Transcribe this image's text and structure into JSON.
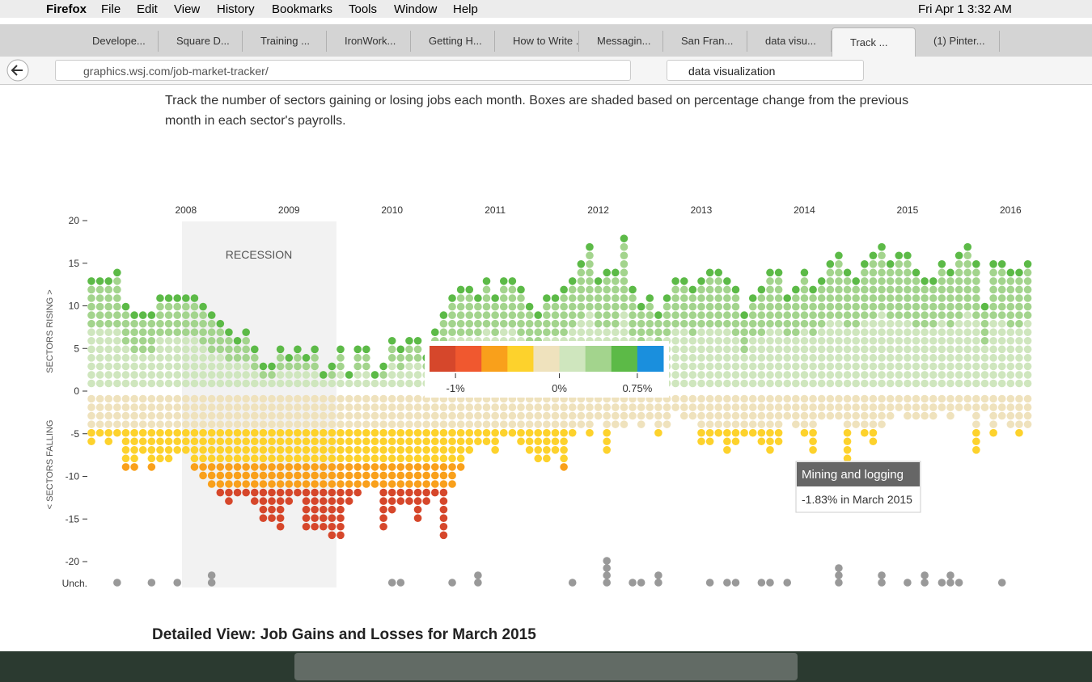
{
  "browser": {
    "menu": [
      "Firefox",
      "File",
      "Edit",
      "View",
      "History",
      "Bookmarks",
      "Tools",
      "Window",
      "Help"
    ],
    "clock": "Fri Apr 1  3:32 AM",
    "tabs": [
      "Develope...",
      "Square D...",
      "Training ...",
      "IronWork...",
      "Getting H...",
      "How to Write ...",
      "Messagin...",
      "San Fran...",
      "data visu...",
      "Track ...",
      "(1) Pinter..."
    ],
    "url": "graphics.wsj.com/job-market-tracker/",
    "search": "data visualization"
  },
  "page": {
    "description": "Track the number of sectors gaining or losing jobs each month. Boxes are shaded based on percentage change from the previous month in each sector's payrolls.",
    "recession_label": "RECESSION",
    "tooltip_title": "Mining and logging",
    "tooltip_detail": "-1.83% in March 2015",
    "section_heading": "Detailed View: Job Gains and Losses for March 2015"
  },
  "chart_data": {
    "type": "dot",
    "y_label_top": "SECTORS RISING >",
    "y_label_bottom": "< SECTORS FALLING",
    "unchanged_label": "Unch.",
    "categories": [
      null,
      null,
      null,
      null,
      null,
      null,
      null,
      null,
      null,
      null,
      null,
      "2008",
      null,
      null,
      null,
      null,
      null,
      null,
      null,
      null,
      null,
      null,
      null,
      "2009",
      null,
      null,
      null,
      null,
      null,
      null,
      null,
      null,
      null,
      null,
      null,
      "2010",
      null,
      null,
      null,
      null,
      null,
      null,
      null,
      null,
      null,
      null,
      null,
      "2011",
      null,
      null,
      null,
      null,
      null,
      null,
      null,
      null,
      null,
      null,
      null,
      "2012",
      null,
      null,
      null,
      null,
      null,
      null,
      null,
      null,
      null,
      null,
      null,
      "2013",
      null,
      null,
      null,
      null,
      null,
      null,
      null,
      null,
      null,
      null,
      null,
      "2014",
      null,
      null,
      null,
      null,
      null,
      null,
      null,
      null,
      null,
      null,
      null,
      "2015",
      null,
      null,
      null,
      null,
      null,
      null,
      null,
      null,
      null,
      null,
      null,
      "2016",
      null,
      null
    ],
    "series": [
      {
        "values": [
          13,
          13,
          13,
          14,
          10,
          9,
          9,
          9,
          11,
          11,
          11,
          11,
          11,
          10,
          9,
          8,
          7,
          6,
          7,
          5,
          3,
          3,
          5,
          4,
          5,
          4,
          5,
          2,
          3,
          5,
          2,
          5,
          5,
          2,
          3,
          6,
          5,
          6,
          6,
          4,
          7,
          9,
          11,
          12,
          12,
          11,
          13,
          11,
          13,
          13,
          12,
          10,
          9,
          11,
          11,
          12,
          13,
          15,
          17,
          13,
          14,
          14,
          18,
          12,
          10,
          11,
          9,
          11,
          13,
          13,
          12,
          13,
          14,
          14,
          13,
          12,
          9,
          11,
          12,
          14,
          14,
          11,
          12,
          14,
          12,
          13,
          15,
          16,
          14,
          13,
          15,
          16,
          17,
          15,
          16,
          16,
          14,
          13,
          13,
          15,
          14,
          16,
          17,
          15,
          10,
          15,
          15,
          14,
          14,
          15
        ]
      },
      {
        "values": [
          -6,
          -5,
          -6,
          -5,
          -9,
          -9,
          -7,
          -9,
          -8,
          -8,
          -7,
          -7,
          -9,
          -10,
          -11,
          -12,
          -13,
          -12,
          -12,
          -13,
          -15,
          -15,
          -16,
          -13,
          -12,
          -16,
          -16,
          -16,
          -17,
          -17,
          -13,
          -12,
          -11,
          -11,
          -16,
          -14,
          -13,
          -13,
          -15,
          -13,
          -12,
          -17,
          -11,
          -9,
          -7,
          -6,
          -6,
          -7,
          -5,
          -5,
          -6,
          -7,
          -8,
          -8,
          -7,
          -9,
          -5,
          -4,
          -5,
          -3,
          -7,
          -4,
          -4,
          -3,
          -4,
          -3,
          -5,
          -4,
          -2,
          -3,
          -3,
          -6,
          -6,
          -5,
          -7,
          -6,
          -5,
          -5,
          -6,
          -7,
          -6,
          -3,
          -4,
          -5,
          -7,
          -3,
          -3,
          -3,
          -9,
          -4,
          -5,
          -6,
          -4,
          -3,
          -2,
          -3,
          -3,
          -3,
          -3,
          -2,
          -3,
          -2,
          -2,
          -7,
          -2,
          -5,
          -3,
          -4,
          -5,
          -4
        ]
      },
      {
        "values": [
          0,
          0,
          0,
          1,
          0,
          0,
          0,
          1,
          0,
          0,
          1,
          0,
          0,
          0,
          2,
          0,
          0,
          0,
          0,
          0,
          0,
          0,
          0,
          0,
          0,
          0,
          0,
          0,
          0,
          0,
          0,
          0,
          0,
          0,
          0,
          1,
          1,
          0,
          0,
          0,
          0,
          0,
          1,
          0,
          0,
          2,
          0,
          0,
          0,
          0,
          0,
          0,
          0,
          0,
          0,
          0,
          1,
          0,
          0,
          0,
          4,
          0,
          0,
          1,
          1,
          0,
          2,
          0,
          0,
          0,
          0,
          0,
          1,
          0,
          1,
          1,
          0,
          0,
          1,
          1,
          0,
          1,
          0,
          0,
          0,
          0,
          0,
          3,
          0,
          0,
          0,
          0,
          2,
          0,
          0,
          1,
          0,
          2,
          0,
          1,
          2,
          1,
          0,
          0,
          0,
          0,
          1,
          0,
          0,
          0
        ]
      }
    ],
    "ylim": [
      -20,
      20
    ],
    "yticks": [
      20,
      15,
      10,
      5,
      0,
      -5,
      -10,
      -15,
      -20
    ],
    "colorscale": {
      "colors": [
        "#d6472b",
        "#f0582f",
        "#f9a01b",
        "#fdd22c",
        "#efe2bd",
        "#cfe6be",
        "#a3d48d",
        "#5cba47",
        "#1a8fdd"
      ],
      "lim": [
        -1.25,
        1
      ],
      "ticks": [
        {
          "value": -1,
          "label": "-1%"
        },
        {
          "value": 0,
          "label": "0%"
        },
        {
          "value": 0.75,
          "label": "0.75%"
        }
      ]
    }
  }
}
